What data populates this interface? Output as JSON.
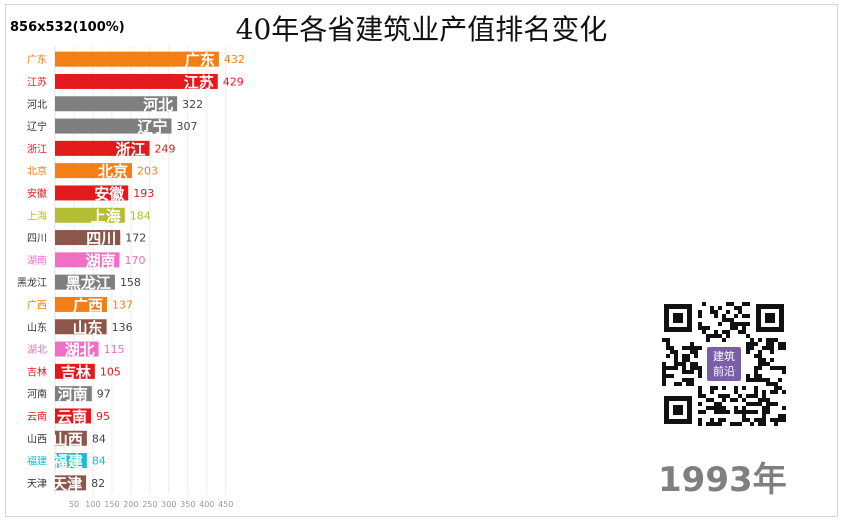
{
  "header": {
    "size_label": "856x532(100%)"
  },
  "chart_data": {
    "type": "bar",
    "orientation": "horizontal",
    "title": "40年各省建筑业产值排名变化",
    "year": "1993年",
    "xlim": [
      0,
      450
    ],
    "x_ticks": [
      50,
      100,
      150,
      200,
      250,
      300,
      350,
      400,
      450
    ],
    "grid": true,
    "categories": [
      "广东",
      "江苏",
      "河北",
      "辽宁",
      "浙江",
      "北京",
      "安徽",
      "上海",
      "四川",
      "湖南",
      "黑龙江",
      "广西",
      "山东",
      "湖北",
      "吉林",
      "河南",
      "云南",
      "山西",
      "福建",
      "天津"
    ],
    "bar_labels": [
      "广东",
      "江苏",
      "河北",
      "辽宁",
      "浙江",
      "北京",
      "安徽",
      "上海",
      "四川",
      "湖南",
      "黑龙江",
      "广西",
      "山东",
      "湖北",
      "吉林",
      "河南",
      "云南",
      "山西",
      "福建",
      "天津"
    ],
    "values": [
      432,
      429,
      322,
      307,
      249,
      203,
      193,
      184,
      172,
      170,
      158,
      137,
      136,
      115,
      105,
      97,
      95,
      84,
      84,
      82
    ],
    "colors": [
      "#f57f17",
      "#e31a1c",
      "#7f7f7f",
      "#7f7f7f",
      "#e31a1c",
      "#f57f17",
      "#e31a1c",
      "#b5bd33",
      "#8c564b",
      "#f06fc4",
      "#7f7f7f",
      "#f57f17",
      "#8c564b",
      "#f06fc4",
      "#e31a1c",
      "#7f7f7f",
      "#e31a1c",
      "#8c564b",
      "#17becf",
      "#8c564b"
    ]
  },
  "qr": {
    "center_text": [
      "建筑",
      "前沿"
    ]
  }
}
